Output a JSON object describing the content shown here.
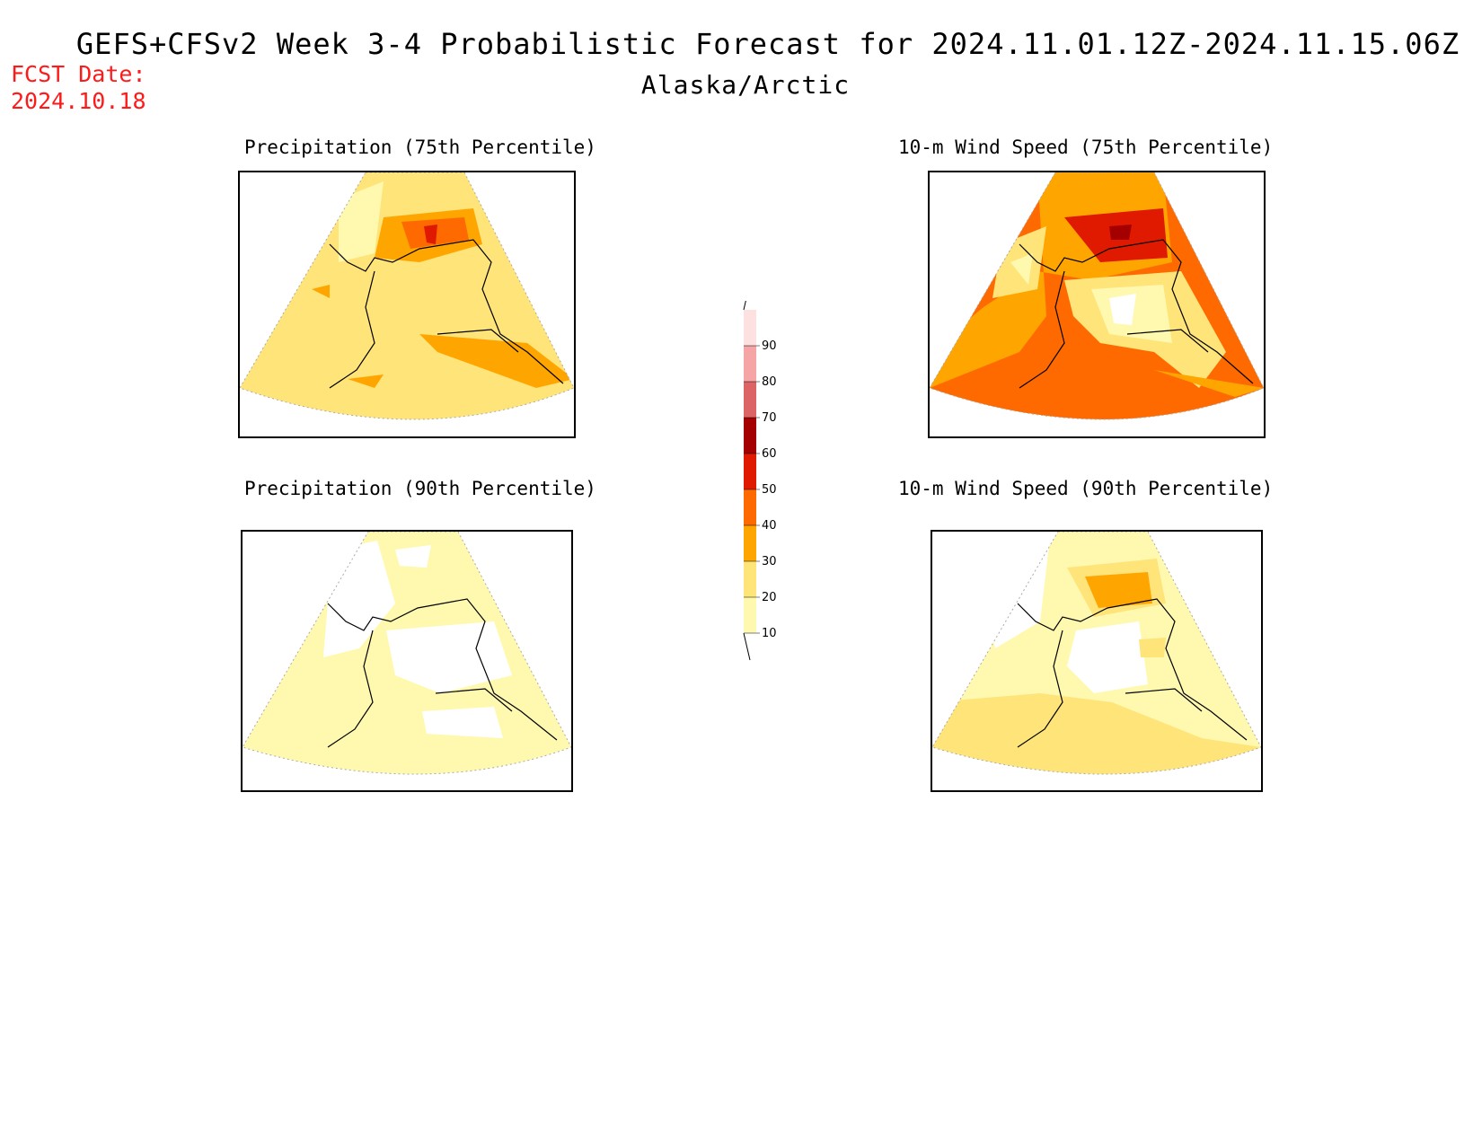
{
  "header": {
    "title": "GEFS+CFSv2 Week 3-4 Probabilistic Forecast for 2024.11.01.12Z-2024.11.15.06Z",
    "region": "Alaska/Arctic",
    "fcst_label": "FCST Date:",
    "fcst_value": "2024.10.18",
    "fcst_color": "#ff1a1a"
  },
  "panels": [
    {
      "id": "precip-75",
      "title": "Precipitation (75th Percentile)"
    },
    {
      "id": "wind-75",
      "title": "10-m Wind Speed (75th Percentile)"
    },
    {
      "id": "precip-90",
      "title": "Precipitation (90th Percentile)"
    },
    {
      "id": "wind-90",
      "title": "10-m Wind Speed (90th Percentile)"
    }
  ],
  "colorbar": {
    "levels": [
      "10",
      "20",
      "30",
      "40",
      "50",
      "60",
      "70",
      "80",
      "90"
    ],
    "colors": [
      "#ffffff",
      "#fff9b0",
      "#ffe47a",
      "#ffa500",
      "#ff6a00",
      "#e01a00",
      "#a50000",
      "#dc6464",
      "#f5a5a5",
      "#fde0e0"
    ]
  }
}
